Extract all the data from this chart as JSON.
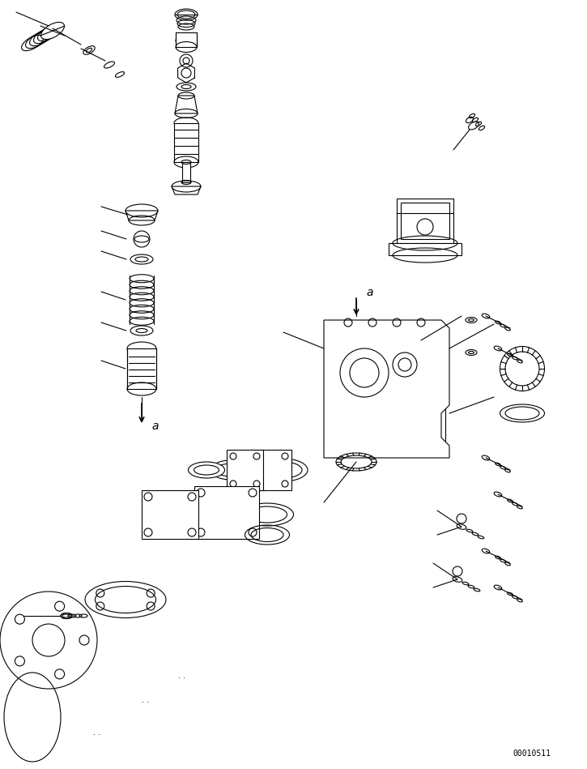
{
  "title": "",
  "background_color": "#ffffff",
  "line_color": "#000000",
  "page_number": "00010511",
  "figsize": [
    7.25,
    9.49
  ],
  "dpi": 100
}
